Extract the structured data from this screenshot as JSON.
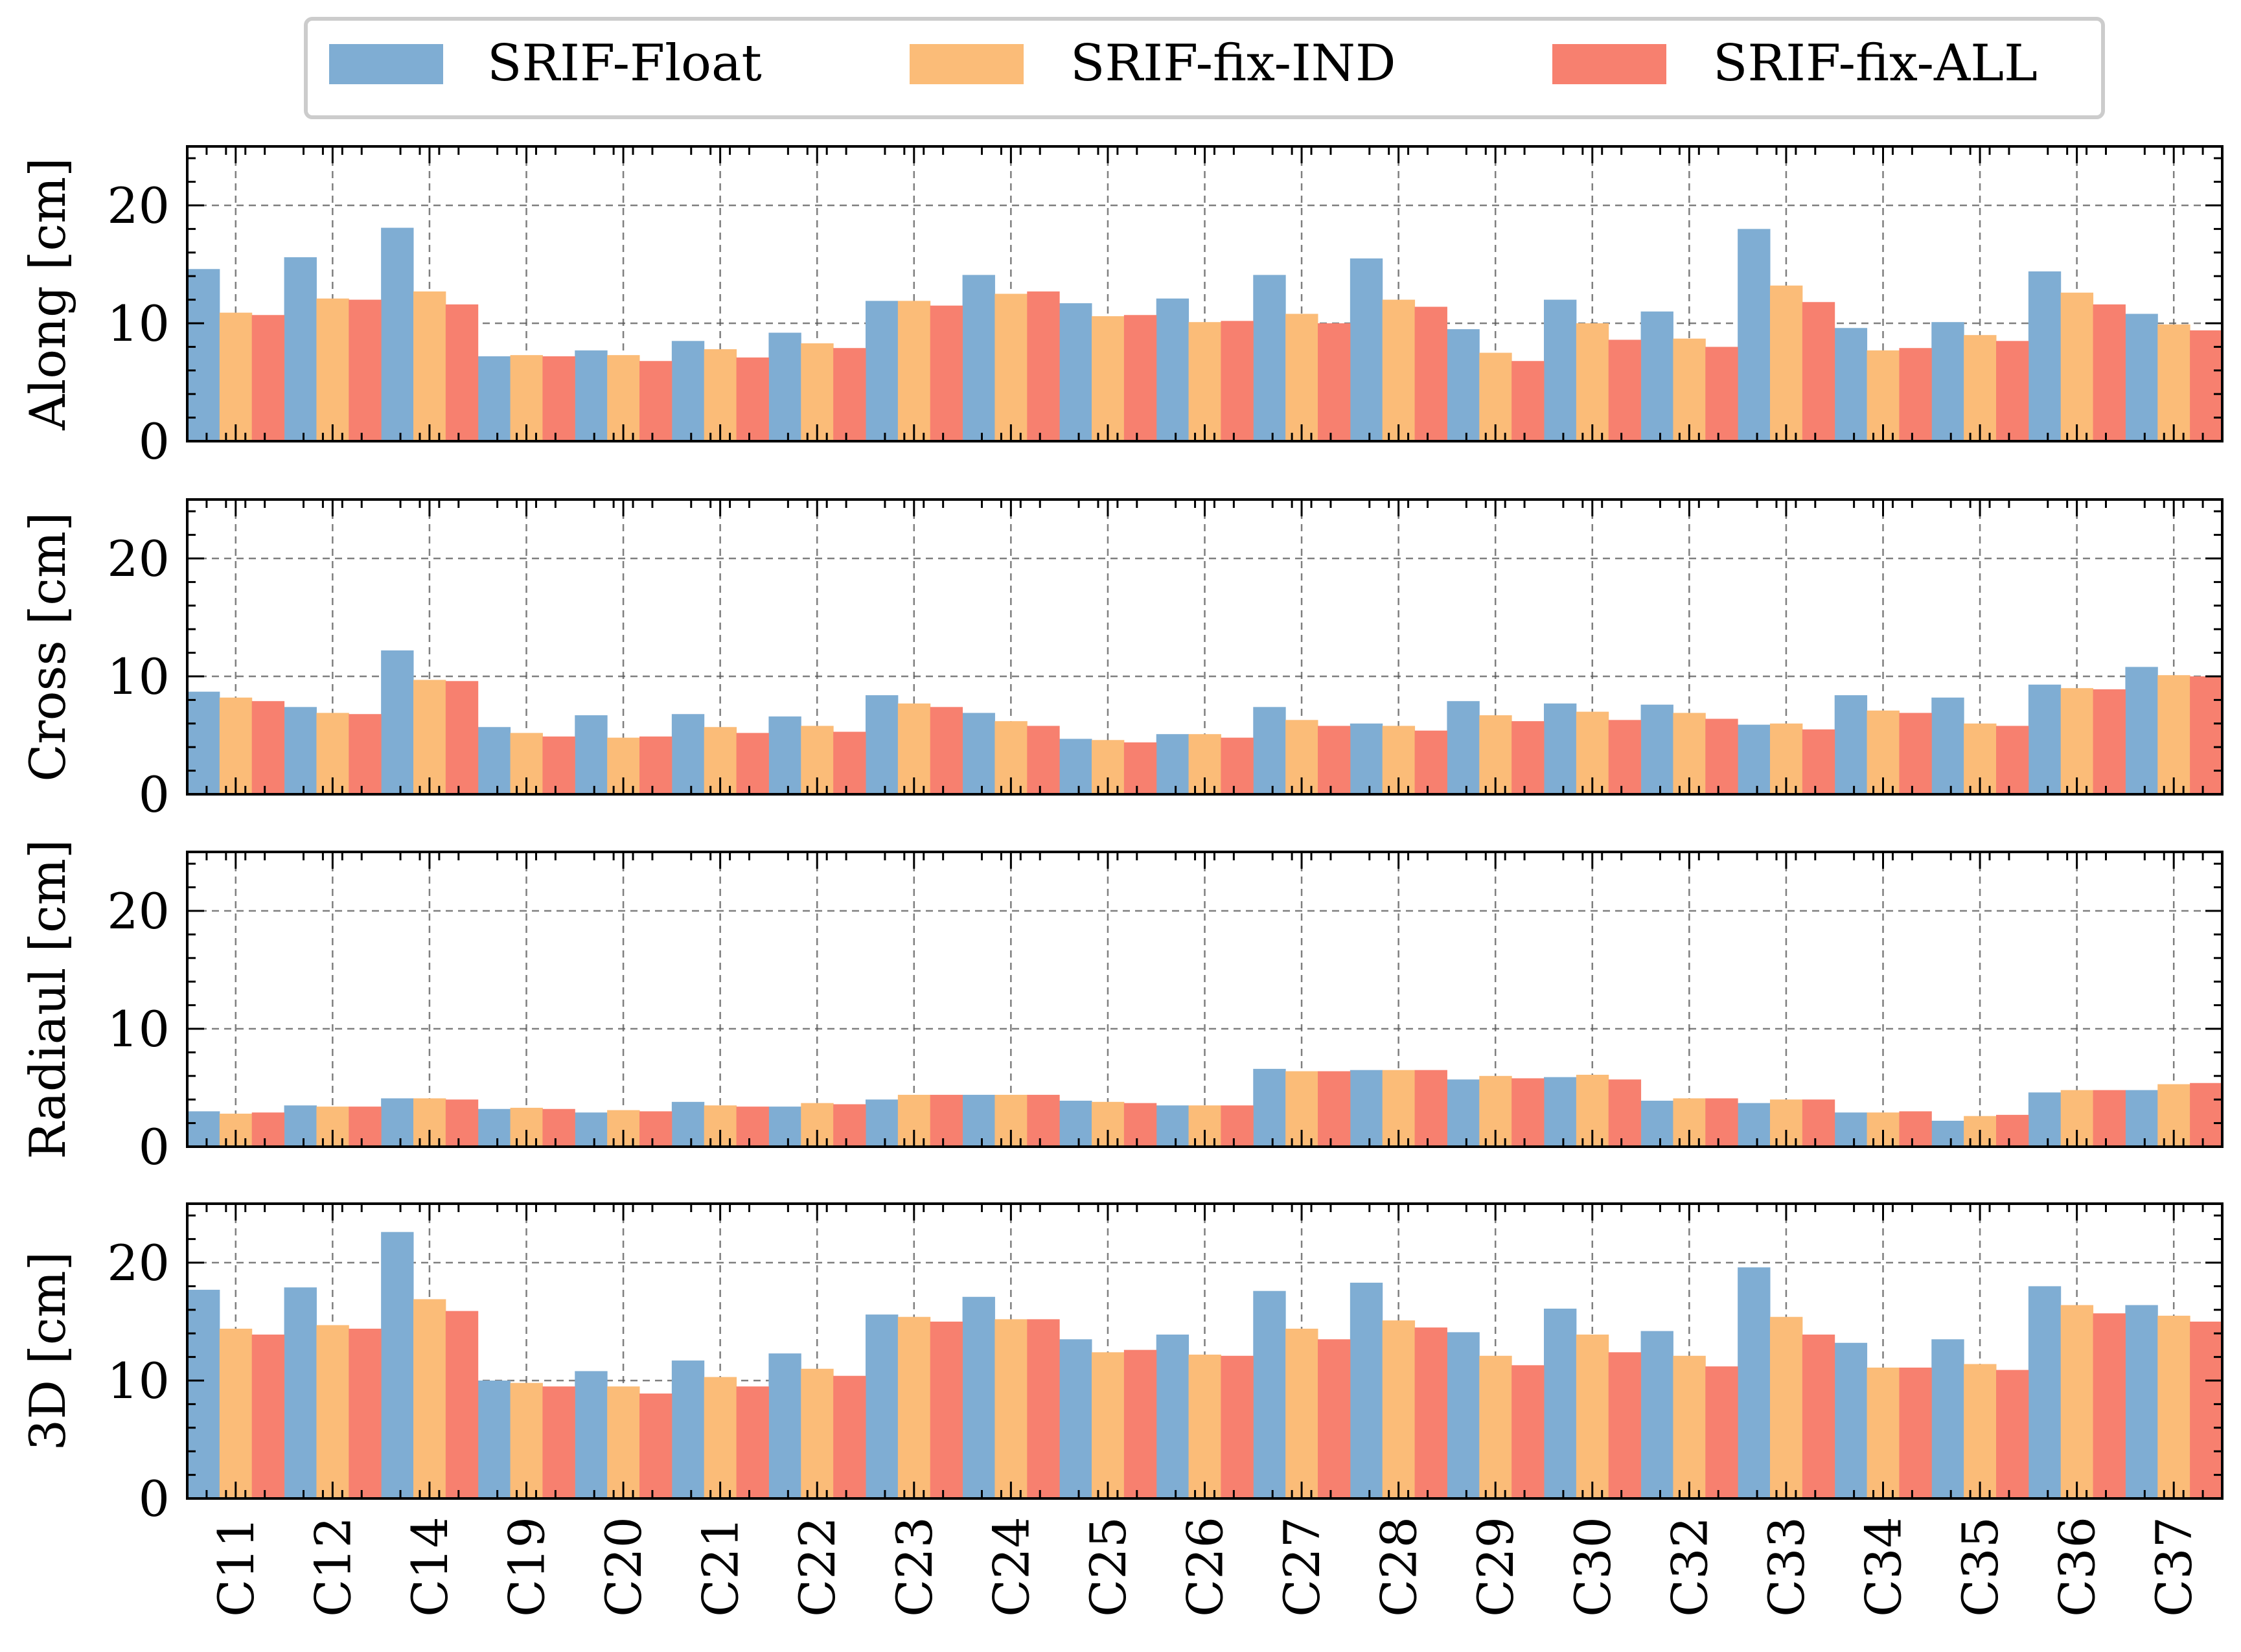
{
  "legend": {
    "placement": "top-center",
    "entries": [
      {
        "label": "SRIF-Float",
        "color": "#7fadd3"
      },
      {
        "label": "SRIF-fix-IND",
        "color": "#fbbc78"
      },
      {
        "label": "SRIF-fix-ALL",
        "color": "#f7806f"
      }
    ]
  },
  "chart_data": {
    "type": "bar",
    "grid": true,
    "categories": [
      "C11",
      "C12",
      "C14",
      "C19",
      "C20",
      "C21",
      "C22",
      "C23",
      "C24",
      "C25",
      "C26",
      "C27",
      "C28",
      "C29",
      "C30",
      "C32",
      "C33",
      "C34",
      "C35",
      "C36",
      "C37"
    ],
    "panels": [
      {
        "ylabel": "Along [cm]",
        "ylim": [
          0,
          25
        ],
        "yticks": [
          "0",
          "10",
          "20"
        ],
        "series": [
          {
            "name": "SRIF-Float",
            "values": [
              14.6,
              15.6,
              18.1,
              7.2,
              7.7,
              8.5,
              9.2,
              11.9,
              14.1,
              11.7,
              12.1,
              14.1,
              15.5,
              9.5,
              12.0,
              11.0,
              18.0,
              9.6,
              10.1,
              14.4,
              10.8
            ]
          },
          {
            "name": "SRIF-fix-IND",
            "values": [
              10.9,
              12.1,
              12.7,
              7.3,
              7.3,
              7.8,
              8.3,
              11.9,
              12.5,
              10.6,
              10.1,
              10.8,
              12.0,
              7.5,
              10.0,
              8.7,
              13.2,
              7.7,
              9.0,
              12.6,
              9.9
            ]
          },
          {
            "name": "SRIF-fix-ALL",
            "values": [
              10.7,
              12.0,
              11.6,
              7.2,
              6.8,
              7.1,
              7.9,
              11.5,
              12.7,
              10.7,
              10.2,
              10.0,
              11.4,
              6.8,
              8.6,
              8.0,
              11.8,
              7.9,
              8.5,
              11.6,
              9.4
            ]
          }
        ]
      },
      {
        "ylabel": "Cross [cm]",
        "ylim": [
          0,
          25
        ],
        "yticks": [
          "0",
          "10",
          "20"
        ],
        "series": [
          {
            "name": "SRIF-Float",
            "values": [
              8.7,
              7.4,
              12.2,
              5.7,
              6.7,
              6.8,
              6.6,
              8.4,
              6.9,
              4.7,
              5.1,
              7.4,
              6.0,
              7.9,
              7.7,
              7.6,
              5.9,
              8.4,
              8.2,
              9.3,
              10.8
            ]
          },
          {
            "name": "SRIF-fix-IND",
            "values": [
              8.2,
              6.9,
              9.7,
              5.2,
              4.8,
              5.7,
              5.8,
              7.7,
              6.2,
              4.6,
              5.1,
              6.3,
              5.8,
              6.7,
              7.0,
              6.9,
              6.0,
              7.1,
              6.0,
              9.0,
              10.1
            ]
          },
          {
            "name": "SRIF-fix-ALL",
            "values": [
              7.9,
              6.8,
              9.6,
              4.9,
              4.9,
              5.2,
              5.3,
              7.4,
              5.8,
              4.4,
              4.8,
              5.8,
              5.4,
              6.2,
              6.3,
              6.4,
              5.5,
              6.9,
              5.8,
              8.9,
              10.0
            ]
          }
        ]
      },
      {
        "ylabel": "Radiaul [cm]",
        "ylim": [
          0,
          25
        ],
        "yticks": [
          "0",
          "10",
          "20"
        ],
        "series": [
          {
            "name": "SRIF-Float",
            "values": [
              3.0,
              3.5,
              4.1,
              3.2,
              2.9,
              3.8,
              3.4,
              4.0,
              4.4,
              3.9,
              3.5,
              6.6,
              6.5,
              5.7,
              5.9,
              3.9,
              3.7,
              2.9,
              2.2,
              4.6,
              4.8
            ]
          },
          {
            "name": "SRIF-fix-IND",
            "values": [
              2.8,
              3.4,
              4.1,
              3.3,
              3.1,
              3.5,
              3.7,
              4.4,
              4.4,
              3.8,
              3.5,
              6.4,
              6.5,
              6.0,
              6.1,
              4.1,
              4.0,
              2.9,
              2.6,
              4.8,
              5.3
            ]
          },
          {
            "name": "SRIF-fix-ALL",
            "values": [
              2.9,
              3.4,
              4.0,
              3.2,
              3.0,
              3.4,
              3.6,
              4.4,
              4.4,
              3.7,
              3.5,
              6.4,
              6.5,
              5.8,
              5.7,
              4.1,
              4.0,
              3.0,
              2.7,
              4.8,
              5.4
            ]
          }
        ]
      },
      {
        "ylabel": "3D [cm]",
        "ylim": [
          0,
          25
        ],
        "yticks": [
          "0",
          "10",
          "20"
        ],
        "series": [
          {
            "name": "SRIF-Float",
            "values": [
              17.7,
              17.9,
              22.6,
              10.0,
              10.8,
              11.7,
              12.3,
              15.6,
              17.1,
              13.5,
              13.9,
              17.6,
              18.3,
              14.1,
              16.1,
              14.2,
              19.6,
              13.2,
              13.5,
              18.0,
              16.4
            ]
          },
          {
            "name": "SRIF-fix-IND",
            "values": [
              14.4,
              14.7,
              16.9,
              9.8,
              9.5,
              10.3,
              11.0,
              15.4,
              15.2,
              12.4,
              12.2,
              14.4,
              15.1,
              12.1,
              13.9,
              12.1,
              15.4,
              11.1,
              11.4,
              16.4,
              15.5
            ]
          },
          {
            "name": "SRIF-fix-ALL",
            "values": [
              13.9,
              14.4,
              15.9,
              9.5,
              8.9,
              9.5,
              10.4,
              15.0,
              15.2,
              12.6,
              12.1,
              13.5,
              14.5,
              11.3,
              12.4,
              11.2,
              13.9,
              11.1,
              10.9,
              15.7,
              15.0
            ]
          }
        ]
      }
    ]
  }
}
